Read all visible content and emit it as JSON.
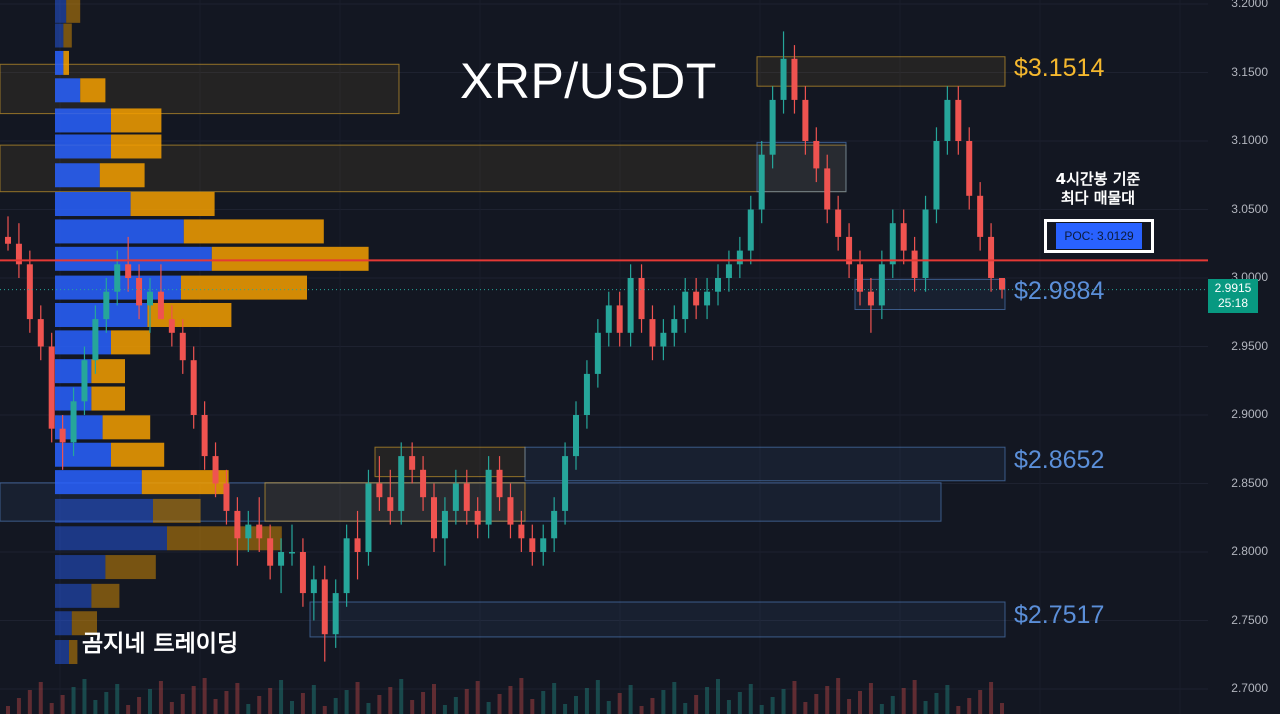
{
  "title": "XRP/USDT",
  "watermark": "곰지네 트레이딩",
  "poc_note": [
    "4시간봉 기준",
    "최다 매물대"
  ],
  "poc_label": "POC: 3.0129",
  "colors": {
    "bg": "#131722",
    "up": "#26a69a",
    "down": "#ef5350",
    "buy_vol": "#2962ff",
    "sell_vol": "#f59f00",
    "resistance": "#f5b82e",
    "support": "#5b8fd9",
    "poc_line": "#e53935"
  },
  "price_tag": {
    "price": "2.9915",
    "countdown": "25:18"
  },
  "chart_data": {
    "type": "candlestick",
    "title": "XRP/USDT",
    "ylim": [
      2.695,
      3.2
    ],
    "y_ticks": [
      "3.2000",
      "3.1500",
      "3.1000",
      "3.0500",
      "3.0000",
      "2.9500",
      "2.9000",
      "2.8500",
      "2.8000",
      "2.7500",
      "2.7000"
    ],
    "poc": 3.0129,
    "current_price": 2.9915,
    "levels": [
      {
        "label": "$3.1514",
        "price": 3.1514,
        "kind": "resistance"
      },
      {
        "label": "$2.9884",
        "price": 2.9884,
        "kind": "support"
      },
      {
        "label": "$2.8652",
        "price": 2.8652,
        "kind": "support"
      },
      {
        "label": "$2.7517",
        "price": 2.7517,
        "kind": "support"
      }
    ],
    "zones": [
      {
        "kind": "resistance",
        "start": 0,
        "end": 399,
        "top": 3.156,
        "bottom": 3.12
      },
      {
        "kind": "resistance",
        "start": 0,
        "end": 846,
        "top": 3.097,
        "bottom": 3.063
      },
      {
        "kind": "resistance",
        "start": 757,
        "end": 1005,
        "top": 3.1615,
        "bottom": 3.14
      },
      {
        "kind": "support",
        "start": 757,
        "end": 846,
        "top": 3.099,
        "bottom": 3.063
      },
      {
        "kind": "support",
        "start": 855,
        "end": 1005,
        "top": 2.999,
        "bottom": 2.977
      },
      {
        "kind": "resistance",
        "start": 375,
        "end": 525,
        "top": 2.8765,
        "bottom": 2.855
      },
      {
        "kind": "support",
        "start": 525,
        "end": 1005,
        "top": 2.8765,
        "bottom": 2.852
      },
      {
        "kind": "support",
        "start": 0,
        "end": 941,
        "top": 2.8505,
        "bottom": 2.8225
      },
      {
        "kind": "resistance",
        "start": 265,
        "end": 525,
        "top": 2.8505,
        "bottom": 2.8225
      },
      {
        "kind": "support",
        "start": 310,
        "end": 1005,
        "top": 2.7635,
        "bottom": 2.738
      }
    ],
    "volume_profile": [
      {
        "price": 3.195,
        "buy": 0.04,
        "sell": 0.05
      },
      {
        "price": 3.177,
        "buy": 0.03,
        "sell": 0.03
      },
      {
        "price": 3.157,
        "buy": 0.03,
        "sell": 0.02
      },
      {
        "price": 3.137,
        "buy": 0.09,
        "sell": 0.09
      },
      {
        "price": 3.115,
        "buy": 0.2,
        "sell": 0.18
      },
      {
        "price": 3.096,
        "buy": 0.2,
        "sell": 0.18
      },
      {
        "price": 3.075,
        "buy": 0.16,
        "sell": 0.16
      },
      {
        "price": 3.054,
        "buy": 0.27,
        "sell": 0.3
      },
      {
        "price": 3.034,
        "buy": 0.46,
        "sell": 0.5
      },
      {
        "price": 3.014,
        "buy": 0.56,
        "sell": 0.56
      },
      {
        "price": 2.993,
        "buy": 0.45,
        "sell": 0.45
      },
      {
        "price": 2.973,
        "buy": 0.33,
        "sell": 0.3
      },
      {
        "price": 2.953,
        "buy": 0.2,
        "sell": 0.14
      },
      {
        "price": 2.932,
        "buy": 0.13,
        "sell": 0.12
      },
      {
        "price": 2.912,
        "buy": 0.13,
        "sell": 0.12
      },
      {
        "price": 2.891,
        "buy": 0.17,
        "sell": 0.17
      },
      {
        "price": 2.871,
        "buy": 0.2,
        "sell": 0.19
      },
      {
        "price": 2.851,
        "buy": 0.31,
        "sell": 0.31
      },
      {
        "price": 2.83,
        "buy": 0.35,
        "sell": 0.17
      },
      {
        "price": 2.81,
        "buy": 0.4,
        "sell": 0.41
      },
      {
        "price": 2.789,
        "buy": 0.18,
        "sell": 0.18
      },
      {
        "price": 2.768,
        "buy": 0.13,
        "sell": 0.1
      },
      {
        "price": 2.748,
        "buy": 0.06,
        "sell": 0.09
      },
      {
        "price": 2.727,
        "buy": 0.05,
        "sell": 0.03
      }
    ],
    "candles": [
      [
        3.03,
        3.045,
        3.02,
        3.025
      ],
      [
        3.025,
        3.04,
        3.0,
        3.01
      ],
      [
        3.01,
        3.02,
        2.96,
        2.97
      ],
      [
        2.97,
        2.98,
        2.94,
        2.95
      ],
      [
        2.95,
        2.96,
        2.88,
        2.89
      ],
      [
        2.89,
        2.9,
        2.86,
        2.88
      ],
      [
        2.88,
        2.92,
        2.87,
        2.91
      ],
      [
        2.91,
        2.95,
        2.9,
        2.94
      ],
      [
        2.94,
        2.98,
        2.93,
        2.97
      ],
      [
        2.97,
        3.0,
        2.96,
        2.99
      ],
      [
        2.99,
        3.02,
        2.98,
        3.01
      ],
      [
        3.01,
        3.03,
        2.99,
        3.0
      ],
      [
        3.0,
        3.01,
        2.97,
        2.98
      ],
      [
        2.98,
        3.0,
        2.96,
        2.99
      ],
      [
        2.99,
        3.01,
        2.97,
        2.97
      ],
      [
        2.97,
        2.98,
        2.95,
        2.96
      ],
      [
        2.96,
        2.97,
        2.93,
        2.94
      ],
      [
        2.94,
        2.95,
        2.89,
        2.9
      ],
      [
        2.9,
        2.91,
        2.86,
        2.87
      ],
      [
        2.87,
        2.88,
        2.84,
        2.85
      ],
      [
        2.85,
        2.86,
        2.82,
        2.83
      ],
      [
        2.83,
        2.84,
        2.79,
        2.81
      ],
      [
        2.81,
        2.83,
        2.8,
        2.82
      ],
      [
        2.82,
        2.84,
        2.8,
        2.81
      ],
      [
        2.81,
        2.82,
        2.78,
        2.79
      ],
      [
        2.79,
        2.81,
        2.77,
        2.8
      ],
      [
        2.8,
        2.82,
        2.79,
        2.8
      ],
      [
        2.8,
        2.81,
        2.76,
        2.77
      ],
      [
        2.77,
        2.79,
        2.75,
        2.78
      ],
      [
        2.78,
        2.79,
        2.72,
        2.74
      ],
      [
        2.74,
        2.78,
        2.73,
        2.77
      ],
      [
        2.77,
        2.82,
        2.76,
        2.81
      ],
      [
        2.81,
        2.83,
        2.78,
        2.8
      ],
      [
        2.8,
        2.86,
        2.79,
        2.85
      ],
      [
        2.85,
        2.87,
        2.83,
        2.84
      ],
      [
        2.84,
        2.86,
        2.82,
        2.83
      ],
      [
        2.83,
        2.88,
        2.82,
        2.87
      ],
      [
        2.87,
        2.88,
        2.85,
        2.86
      ],
      [
        2.86,
        2.87,
        2.83,
        2.84
      ],
      [
        2.84,
        2.85,
        2.8,
        2.81
      ],
      [
        2.81,
        2.84,
        2.79,
        2.83
      ],
      [
        2.83,
        2.86,
        2.82,
        2.85
      ],
      [
        2.85,
        2.86,
        2.82,
        2.83
      ],
      [
        2.83,
        2.84,
        2.81,
        2.82
      ],
      [
        2.82,
        2.87,
        2.81,
        2.86
      ],
      [
        2.86,
        2.87,
        2.83,
        2.84
      ],
      [
        2.84,
        2.85,
        2.81,
        2.82
      ],
      [
        2.82,
        2.83,
        2.8,
        2.81
      ],
      [
        2.81,
        2.82,
        2.79,
        2.8
      ],
      [
        2.8,
        2.82,
        2.79,
        2.81
      ],
      [
        2.81,
        2.84,
        2.8,
        2.83
      ],
      [
        2.83,
        2.88,
        2.82,
        2.87
      ],
      [
        2.87,
        2.91,
        2.86,
        2.9
      ],
      [
        2.9,
        2.94,
        2.89,
        2.93
      ],
      [
        2.93,
        2.97,
        2.92,
        2.96
      ],
      [
        2.96,
        2.99,
        2.95,
        2.98
      ],
      [
        2.98,
        2.99,
        2.95,
        2.96
      ],
      [
        2.96,
        3.01,
        2.95,
        3.0
      ],
      [
        3.0,
        3.01,
        2.96,
        2.97
      ],
      [
        2.97,
        2.98,
        2.94,
        2.95
      ],
      [
        2.95,
        2.97,
        2.94,
        2.96
      ],
      [
        2.96,
        2.98,
        2.95,
        2.97
      ],
      [
        2.97,
        3.0,
        2.96,
        2.99
      ],
      [
        2.99,
        3.0,
        2.97,
        2.98
      ],
      [
        2.98,
        3.0,
        2.97,
        2.99
      ],
      [
        2.99,
        3.01,
        2.98,
        3.0
      ],
      [
        3.0,
        3.02,
        2.99,
        3.01
      ],
      [
        3.01,
        3.03,
        3.0,
        3.02
      ],
      [
        3.02,
        3.06,
        3.01,
        3.05
      ],
      [
        3.05,
        3.1,
        3.04,
        3.09
      ],
      [
        3.09,
        3.14,
        3.08,
        3.13
      ],
      [
        3.13,
        3.18,
        3.12,
        3.16
      ],
      [
        3.16,
        3.17,
        3.12,
        3.13
      ],
      [
        3.13,
        3.14,
        3.09,
        3.1
      ],
      [
        3.1,
        3.11,
        3.07,
        3.08
      ],
      [
        3.08,
        3.09,
        3.04,
        3.05
      ],
      [
        3.05,
        3.06,
        3.02,
        3.03
      ],
      [
        3.03,
        3.04,
        3.0,
        3.01
      ],
      [
        3.01,
        3.02,
        2.98,
        2.99
      ],
      [
        2.99,
        3.0,
        2.96,
        2.98
      ],
      [
        2.98,
        3.02,
        2.97,
        3.01
      ],
      [
        3.01,
        3.05,
        3.0,
        3.04
      ],
      [
        3.04,
        3.05,
        3.01,
        3.02
      ],
      [
        3.02,
        3.03,
        2.99,
        3.0
      ],
      [
        3.0,
        3.06,
        2.99,
        3.05
      ],
      [
        3.05,
        3.11,
        3.04,
        3.1
      ],
      [
        3.1,
        3.14,
        3.09,
        3.13
      ],
      [
        3.13,
        3.14,
        3.09,
        3.1
      ],
      [
        3.1,
        3.11,
        3.05,
        3.06
      ],
      [
        3.06,
        3.07,
        3.02,
        3.03
      ],
      [
        3.03,
        3.04,
        2.99,
        3.0
      ],
      [
        3.0,
        3.0,
        2.985,
        2.9915
      ]
    ]
  }
}
